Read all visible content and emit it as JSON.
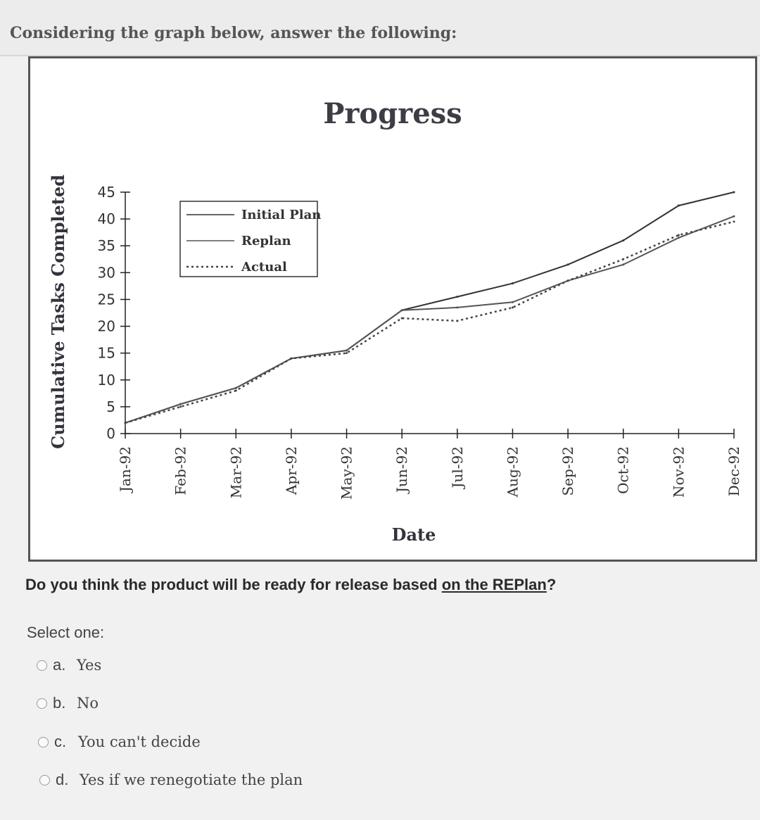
{
  "question": {
    "title": "Considering the graph below, answer the following:",
    "prompt_before": "Do you think the product will be ready for release based ",
    "prompt_link": "on the REPlan",
    "prompt_after": "?",
    "select_label": "Select one:"
  },
  "options": [
    {
      "letter": "a.",
      "text": "Yes"
    },
    {
      "letter": "b.",
      "text": "No"
    },
    {
      "letter": "c.",
      "text": "You can't decide"
    },
    {
      "letter": "d.",
      "text": "Yes if we renegotiate the plan"
    }
  ],
  "chart_data": {
    "type": "line",
    "title": "Progress",
    "xlabel": "Date",
    "ylabel": "Cumulative Tasks Completed",
    "ylim": [
      0,
      45
    ],
    "yticks": [
      0,
      5,
      10,
      15,
      20,
      25,
      30,
      35,
      40,
      45
    ],
    "categories": [
      "Jan-92",
      "Feb-92",
      "Mar-92",
      "Apr-92",
      "May-92",
      "Jun-92",
      "Jul-92",
      "Aug-92",
      "Sep-92",
      "Oct-92",
      "Nov-92",
      "Dec-92"
    ],
    "legend_placement": "top-left",
    "series": [
      {
        "name": "Initial Plan",
        "style": "solid",
        "color": "#333333",
        "values": [
          2,
          5.5,
          8.5,
          14,
          15.5,
          23,
          25.5,
          28,
          31.5,
          36,
          42.5,
          45
        ]
      },
      {
        "name": "Replan",
        "style": "solid",
        "color": "#555555",
        "values": [
          2,
          5.5,
          8.5,
          14,
          15.5,
          23,
          23.5,
          24.5,
          28.5,
          31.5,
          36.5,
          40.5
        ]
      },
      {
        "name": "Actual",
        "style": "dotted",
        "color": "#444444",
        "values": [
          2,
          5,
          8,
          14,
          15,
          21.5,
          21,
          23.5,
          28.5,
          32.5,
          37,
          39.5
        ]
      }
    ]
  }
}
